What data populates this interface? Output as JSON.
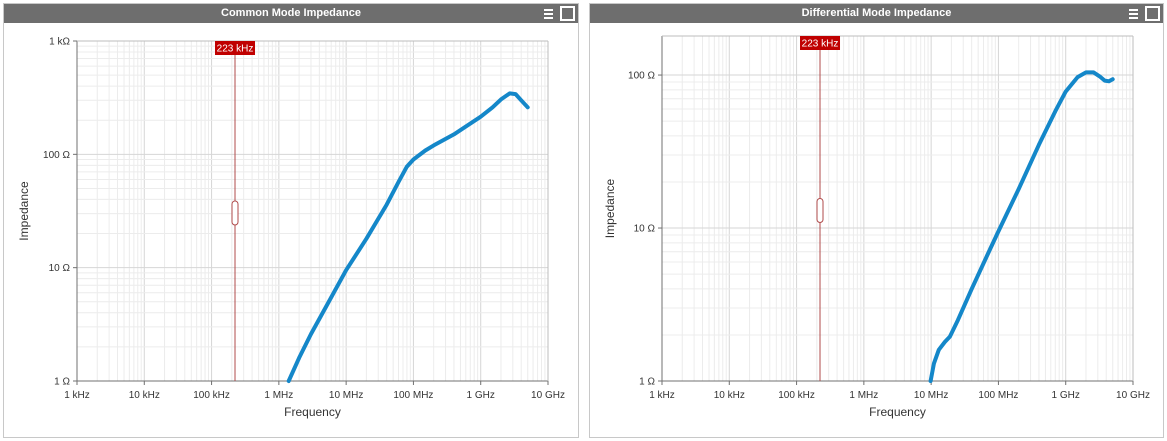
{
  "panels": [
    {
      "title": "Common Mode Impedance",
      "menu_icon": "menu-icon",
      "maximize_icon": "maximize-icon"
    },
    {
      "title": "Differential Mode Impedance",
      "menu_icon": "menu-icon",
      "maximize_icon": "maximize-icon"
    }
  ],
  "chart_data": [
    {
      "type": "line",
      "title": "Common Mode Impedance",
      "xlabel": "Frequency",
      "ylabel": "Impedance",
      "x_scale": "log",
      "y_scale": "log",
      "xlim": [
        "1 kHz",
        "10 GHz"
      ],
      "ylim": [
        "1 Ω",
        "1 kΩ"
      ],
      "x_ticks": [
        "1 kHz",
        "10 kHz",
        "100 kHz",
        "1 MHz",
        "10 MHz",
        "100 MHz",
        "1 GHz",
        "10 GHz"
      ],
      "y_ticks": [
        "1 Ω",
        "10 Ω",
        "100 Ω",
        "1 kΩ"
      ],
      "grid": true,
      "marker_label": "223 kHz",
      "marker_hz": 223000,
      "line_color": "#1487c9",
      "marker_color": "#c00000",
      "series": [
        {
          "x_hz": [
            1400000.0,
            2000000.0,
            3000000.0,
            5000000.0,
            10000000.0,
            20000000.0,
            40000000.0,
            60000000.0,
            80000000.0,
            100000000.0,
            150000000.0,
            200000000.0,
            400000000.0,
            1000000000.0,
            1500000000.0,
            2000000000.0,
            2700000000.0,
            3300000000.0,
            4000000000.0,
            5000000000.0
          ],
          "ohm": [
            1,
            1.6,
            2.6,
            4.5,
            9.5,
            18,
            36,
            57,
            78,
            90,
            108,
            120,
            150,
            215,
            260,
            305,
            345,
            340,
            300,
            260
          ]
        }
      ]
    },
    {
      "type": "line",
      "title": "Differential Mode Impedance",
      "xlabel": "Frequency",
      "ylabel": "Impedance",
      "x_scale": "log",
      "y_scale": "log",
      "xlim": [
        "1 kHz",
        "10 GHz"
      ],
      "ylim": [
        "1 Ω",
        "180 Ω"
      ],
      "x_ticks": [
        "1 kHz",
        "10 kHz",
        "100 kHz",
        "1 MHz",
        "10 MHz",
        "100 MHz",
        "1 GHz",
        "10 GHz"
      ],
      "y_ticks": [
        "1 Ω",
        "10 Ω",
        "100 Ω"
      ],
      "grid": true,
      "marker_label": "223 kHz",
      "marker_hz": 223000,
      "line_color": "#1487c9",
      "marker_color": "#c00000",
      "series": [
        {
          "x_hz": [
            9800000.0,
            11000000.0,
            13000000.0,
            16000000.0,
            19000000.0,
            25000000.0,
            40000000.0,
            70000000.0,
            100000000.0,
            200000000.0,
            400000000.0,
            700000000.0,
            1000000000.0,
            1500000000.0,
            2000000000.0,
            2600000000.0,
            3200000000.0,
            3800000000.0,
            4400000000.0,
            5000000000.0
          ],
          "ohm": [
            1,
            1.3,
            1.6,
            1.8,
            1.95,
            2.5,
            4,
            6.8,
            9.5,
            18,
            35,
            58,
            78,
            97,
            104,
            104,
            98,
            92,
            91,
            94
          ]
        }
      ]
    }
  ]
}
